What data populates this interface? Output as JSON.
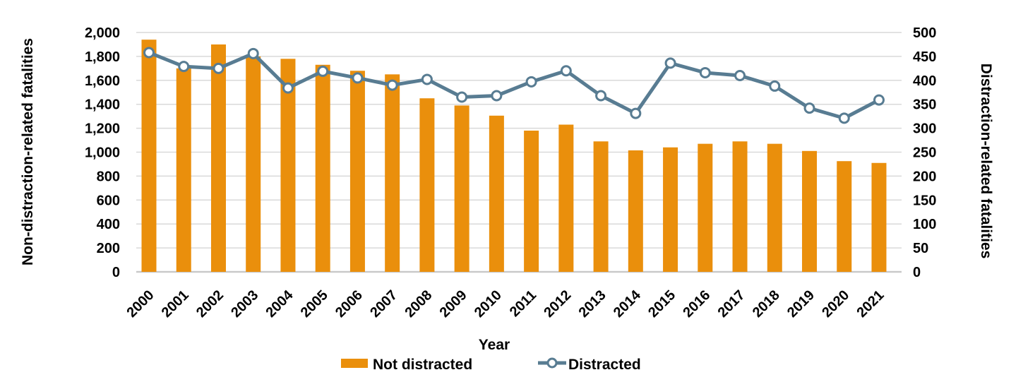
{
  "chart_data": {
    "type": "bar+line combo",
    "title": "",
    "xlabel": "Year",
    "x_categories": [
      "2000",
      "2001",
      "2002",
      "2003",
      "2004",
      "2005",
      "2006",
      "2007",
      "2008",
      "2009",
      "2010",
      "2011",
      "2012",
      "2013",
      "2014",
      "2015",
      "2016",
      "2017",
      "2018",
      "2019",
      "2020",
      "2021"
    ],
    "series": [
      {
        "name": "Not distracted",
        "type": "bar",
        "axis": "left",
        "values": [
          1940,
          1700,
          1900,
          1800,
          1780,
          1730,
          1680,
          1650,
          1450,
          1390,
          1305,
          1180,
          1230,
          1090,
          1015,
          1040,
          1070,
          1090,
          1070,
          1010,
          925,
          910
        ]
      },
      {
        "name": "Distracted",
        "type": "line",
        "axis": "right",
        "marker": "open-circle",
        "values": [
          458,
          429,
          425,
          456,
          384,
          419,
          405,
          390,
          402,
          365,
          368,
          397,
          420,
          368,
          331,
          436,
          416,
          410,
          388,
          342,
          321,
          359
        ]
      }
    ],
    "y_left": {
      "label": "Non-distraction-related fatalities",
      "min": 0,
      "max": 2000,
      "step": 200,
      "tick_labels": [
        "0",
        "200",
        "400",
        "600",
        "800",
        "1,000",
        "1,200",
        "1,400",
        "1,600",
        "1,800",
        "2,000"
      ]
    },
    "y_right": {
      "label": "Distraction-related fatalities",
      "min": 0,
      "max": 500,
      "step": 50,
      "tick_labels": [
        "0",
        "50",
        "100",
        "150",
        "200",
        "250",
        "300",
        "350",
        "400",
        "450",
        "500"
      ]
    },
    "grid": true,
    "legend_position": "bottom"
  },
  "colors": {
    "bar": "#EA8F0C",
    "line": "#587C92",
    "marker_fill": "#FFFFFF",
    "gridline": "#D9D9D9",
    "baseline": "#C9C9C9",
    "text": "#000000",
    "background": "#FFFFFF"
  }
}
